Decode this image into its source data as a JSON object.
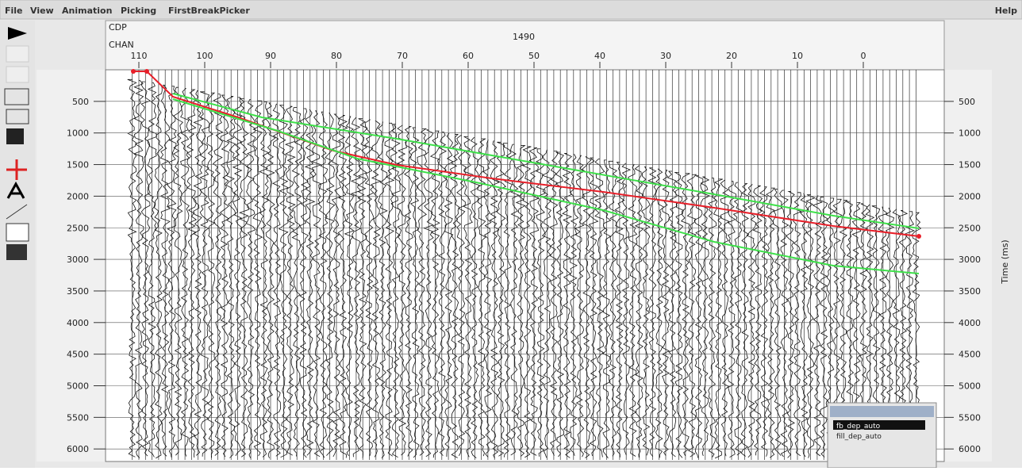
{
  "menu": {
    "items": [
      "File",
      "View",
      "Animation",
      "Picking",
      "FirstBreakPicker"
    ],
    "help": "Help"
  },
  "header": {
    "cdp_label": "CDP",
    "chan_label": "CHAN",
    "cdp_value": "1490"
  },
  "channel_axis": {
    "ticks": [
      110,
      100,
      90,
      80,
      70,
      60,
      50,
      40,
      30,
      20,
      10,
      0
    ]
  },
  "time_axis": {
    "ticks": [
      500,
      1000,
      1500,
      2000,
      2500,
      3000,
      3500,
      4000,
      4500,
      5000,
      5500,
      6000
    ],
    "label": "Time (ms)"
  },
  "picks_window": {
    "items": [
      "fb_dep_auto",
      "fill_dep_auto"
    ]
  }
}
